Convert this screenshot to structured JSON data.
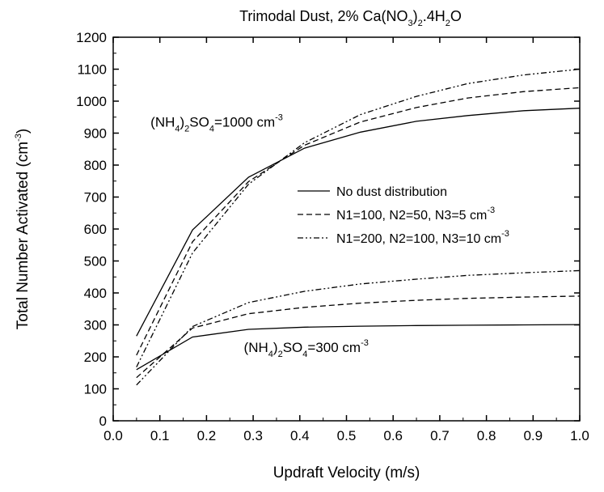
{
  "chart_data": {
    "type": "line",
    "title_parts": [
      "Trimodal Dust, 2% Ca(NO",
      "3",
      ")",
      "2",
      ".4H",
      "2",
      "O"
    ],
    "xlabel": "Updraft Velocity (m/s)",
    "ylabel_parts": [
      "Total Number Activated (cm",
      "-3",
      ")"
    ],
    "xlim": [
      0.0,
      1.0
    ],
    "ylim": [
      0,
      1200
    ],
    "x_ticks": [
      "0.0",
      "0.1",
      "0.2",
      "0.3",
      "0.4",
      "0.5",
      "0.6",
      "0.7",
      "0.8",
      "0.9",
      "1.0"
    ],
    "y_ticks": [
      "0",
      "100",
      "200",
      "300",
      "400",
      "500",
      "600",
      "700",
      "800",
      "900",
      "1000",
      "1100",
      "1200"
    ],
    "grid": false,
    "legend_position": "center-right",
    "legend": [
      {
        "style": "solid",
        "parts": [
          "No dust distribution"
        ]
      },
      {
        "style": "dashed",
        "parts": [
          "N1=100, N2=50, N3=5 cm",
          "-3",
          ""
        ]
      },
      {
        "style": "dashdotdot",
        "parts": [
          "N1=200, N2=100, N3=10 cm",
          "-3",
          ""
        ]
      }
    ],
    "annotations": [
      {
        "parts": [
          "(NH",
          "4",
          ")",
          "2",
          "SO",
          "4",
          "=1000 cm",
          "-3",
          ""
        ],
        "x": 0.08,
        "y": 920
      },
      {
        "parts": [
          "(NH",
          "4",
          ")",
          "2",
          "SO",
          "4",
          "=300 cm",
          "-3",
          ""
        ],
        "x": 0.28,
        "y": 215
      }
    ],
    "x": [
      0.05,
      0.17,
      0.29,
      0.41,
      0.53,
      0.65,
      0.76,
      0.88,
      1.0
    ],
    "series": [
      {
        "group": "1000",
        "style": "solid",
        "values": [
          265,
          597,
          762,
          853,
          903,
          937,
          955,
          970,
          978
        ]
      },
      {
        "group": "1000",
        "style": "dashed",
        "values": [
          205,
          560,
          748,
          862,
          935,
          980,
          1010,
          1030,
          1042
        ]
      },
      {
        "group": "1000",
        "style": "dashdotdot",
        "values": [
          168,
          525,
          740,
          870,
          958,
          1015,
          1055,
          1082,
          1100
        ]
      },
      {
        "group": "300",
        "style": "solid",
        "values": [
          160,
          262,
          286,
          293,
          296,
          298,
          299,
          300,
          301
        ]
      },
      {
        "group": "300",
        "style": "dashed",
        "values": [
          135,
          290,
          335,
          355,
          368,
          377,
          383,
          387,
          390
        ]
      },
      {
        "group": "300",
        "style": "dashdotdot",
        "values": [
          112,
          295,
          370,
          405,
          428,
          443,
          455,
          463,
          470
        ]
      }
    ]
  }
}
